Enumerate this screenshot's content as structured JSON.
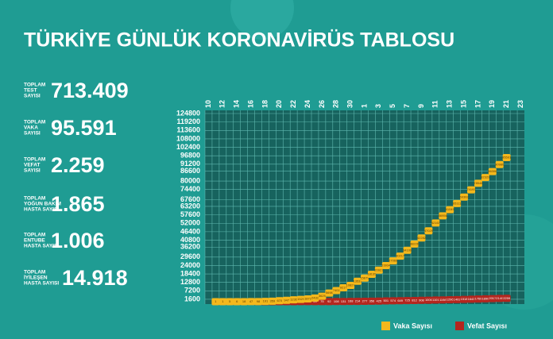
{
  "title": "TÜRKİYE GÜNLÜK KORONAVİRÜS TABLOSU",
  "stats": [
    {
      "label": [
        "TOPLAM",
        "TEST",
        "SAYISI"
      ],
      "value": "713.409"
    },
    {
      "label": [
        "TOPLAM",
        "VAKA",
        "SAYISI"
      ],
      "value": "95.591"
    },
    {
      "label": [
        "TOPLAM",
        "VEFAT",
        "SAYISI"
      ],
      "value": "2.259"
    },
    {
      "label": [
        "TOPLAM",
        "YOĞUN BAKIM",
        "HASTA SAYISI"
      ],
      "value": "1.865"
    },
    {
      "label": [
        "TOPLAM",
        "ENTUBE",
        "HASTA SAYISI"
      ],
      "value": "1.006"
    },
    {
      "label": [
        "TOPLAM",
        "İYİLEŞEN",
        "HASTA SAYISI"
      ],
      "value": "14.918"
    }
  ],
  "chart_data": {
    "type": "line",
    "categories": [
      "10",
      null,
      "12",
      null,
      "14",
      null,
      "16",
      null,
      "18",
      null,
      "20",
      null,
      "22",
      null,
      "24",
      null,
      "26",
      null,
      "28",
      null,
      "30",
      null,
      "1",
      null,
      "3",
      null,
      "5",
      null,
      "7",
      null,
      "9",
      null,
      "11",
      null,
      "13",
      null,
      "15",
      null,
      "17",
      null,
      "19",
      null,
      "21",
      null,
      "23"
    ],
    "series": [
      {
        "name": "Vaka Sayısı",
        "color": "#f4b81c",
        "values": [
          null,
          1,
          1,
          5,
          6,
          18,
          47,
          98,
          191,
          359,
          670,
          947,
          1236,
          1529,
          1872,
          2433,
          3629,
          5698,
          7402,
          9217,
          10827,
          13531,
          15679,
          18135,
          20921,
          23934,
          27069,
          30217,
          34109,
          38226,
          42282,
          47029,
          52167,
          56956,
          61049,
          65111,
          69392,
          74193,
          78546,
          82329,
          86306,
          90980,
          95591,
          null,
          null
        ]
      },
      {
        "name": "Vefat Sayısı",
        "color": "#b3261e",
        "values": [
          null,
          null,
          null,
          null,
          null,
          null,
          null,
          1,
          2,
          3,
          4,
          9,
          30,
          37,
          44,
          59,
          75,
          92,
          108,
          131,
          168,
          214,
          277,
          356,
          425,
          501,
          574,
          649,
          725,
          812,
          908,
          1006,
          1101,
          1198,
          1296,
          1403,
          1518,
          1643,
          1769,
          1890,
          2017,
          2140,
          2259,
          null,
          null
        ]
      }
    ],
    "ylim": [
      0,
      124800
    ],
    "yticks": [
      1600,
      7200,
      12800,
      18400,
      24000,
      29600,
      36200,
      40800,
      46400,
      52000,
      57600,
      63200,
      67600,
      74400,
      80000,
      86600,
      91200,
      96800,
      102400,
      108000,
      113600,
      119200,
      124800
    ],
    "grid": true
  }
}
